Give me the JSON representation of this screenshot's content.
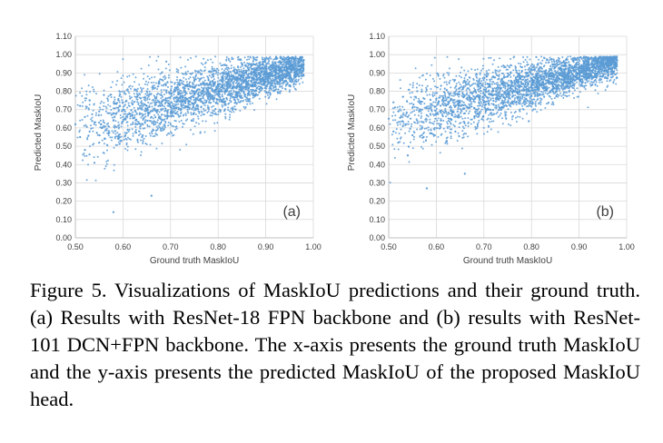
{
  "chart_data": [
    {
      "type": "scatter",
      "panel_label": "(a)",
      "xlabel": "Ground truth MaskIoU",
      "ylabel": "Predicted MaskIoU",
      "xlim": [
        0.5,
        1.0
      ],
      "ylim": [
        0.0,
        1.1
      ],
      "xticks": [
        "0.50",
        "0.60",
        "0.70",
        "0.80",
        "0.90",
        "1.00"
      ],
      "yticks": [
        "0.00",
        "0.10",
        "0.20",
        "0.30",
        "0.40",
        "0.50",
        "0.60",
        "0.70",
        "0.80",
        "0.90",
        "1.00",
        "1.10"
      ],
      "grid": true,
      "point_color": "#5B9BD5",
      "points": [
        [
          0.5,
          0.62
        ],
        [
          0.51,
          0.55
        ],
        [
          0.51,
          0.72
        ],
        [
          0.52,
          0.48
        ],
        [
          0.52,
          0.66
        ],
        [
          0.53,
          0.58
        ],
        [
          0.53,
          0.75
        ],
        [
          0.54,
          0.41
        ],
        [
          0.54,
          0.63
        ],
        [
          0.55,
          0.69
        ],
        [
          0.55,
          0.52
        ],
        [
          0.56,
          0.61
        ],
        [
          0.56,
          0.78
        ],
        [
          0.57,
          0.57
        ],
        [
          0.57,
          0.68
        ],
        [
          0.58,
          0.14
        ],
        [
          0.58,
          0.64
        ],
        [
          0.59,
          0.71
        ],
        [
          0.59,
          0.54
        ],
        [
          0.6,
          0.66
        ],
        [
          0.6,
          0.74
        ],
        [
          0.61,
          0.59
        ],
        [
          0.61,
          0.81
        ],
        [
          0.62,
          0.67
        ],
        [
          0.62,
          0.73
        ],
        [
          0.63,
          0.62
        ],
        [
          0.63,
          0.77
        ],
        [
          0.64,
          0.7
        ],
        [
          0.64,
          0.55
        ],
        [
          0.65,
          0.72
        ],
        [
          0.65,
          0.8
        ],
        [
          0.66,
          0.66
        ],
        [
          0.66,
          0.23
        ],
        [
          0.67,
          0.74
        ],
        [
          0.67,
          0.69
        ],
        [
          0.68,
          0.78
        ],
        [
          0.68,
          0.63
        ],
        [
          0.69,
          0.75
        ],
        [
          0.69,
          0.84
        ],
        [
          0.7,
          0.72
        ],
        [
          0.7,
          0.79
        ],
        [
          0.71,
          0.68
        ],
        [
          0.71,
          0.82
        ],
        [
          0.72,
          0.76
        ],
        [
          0.72,
          0.86
        ],
        [
          0.73,
          0.74
        ],
        [
          0.73,
          0.8
        ],
        [
          0.74,
          0.83
        ],
        [
          0.74,
          0.71
        ],
        [
          0.75,
          0.79
        ],
        [
          0.75,
          0.86
        ],
        [
          0.76,
          0.81
        ],
        [
          0.76,
          0.75
        ],
        [
          0.77,
          0.84
        ],
        [
          0.77,
          0.78
        ],
        [
          0.78,
          0.86
        ],
        [
          0.78,
          0.82
        ],
        [
          0.79,
          0.88
        ],
        [
          0.79,
          0.76
        ],
        [
          0.8,
          0.84
        ],
        [
          0.8,
          0.8
        ],
        [
          0.81,
          0.87
        ],
        [
          0.81,
          0.83
        ],
        [
          0.82,
          0.85
        ],
        [
          0.82,
          0.89
        ],
        [
          0.83,
          0.82
        ],
        [
          0.83,
          0.88
        ],
        [
          0.84,
          0.86
        ],
        [
          0.84,
          0.9
        ],
        [
          0.85,
          0.84
        ],
        [
          0.85,
          0.89
        ],
        [
          0.86,
          0.87
        ],
        [
          0.86,
          0.91
        ],
        [
          0.87,
          0.85
        ],
        [
          0.87,
          0.9
        ],
        [
          0.88,
          0.88
        ],
        [
          0.88,
          0.92
        ],
        [
          0.89,
          0.86
        ],
        [
          0.89,
          0.91
        ],
        [
          0.9,
          0.89
        ],
        [
          0.9,
          0.93
        ],
        [
          0.91,
          0.9
        ],
        [
          0.91,
          0.94
        ],
        [
          0.92,
          0.91
        ],
        [
          0.92,
          0.95
        ],
        [
          0.93,
          0.92
        ],
        [
          0.93,
          0.96
        ],
        [
          0.94,
          0.93
        ],
        [
          0.94,
          0.97
        ],
        [
          0.95,
          0.94
        ],
        [
          0.95,
          0.98
        ],
        [
          0.96,
          0.95
        ],
        [
          0.96,
          0.97
        ],
        [
          0.97,
          0.96
        ],
        [
          0.97,
          0.94
        ],
        [
          0.98,
          0.97
        ]
      ]
    },
    {
      "type": "scatter",
      "panel_label": "(b)",
      "xlabel": "Ground truth MaskIoU",
      "ylabel": "Predicted MaskIoU",
      "xlim": [
        0.5,
        1.0
      ],
      "ylim": [
        0.0,
        1.1
      ],
      "xticks": [
        "0.50",
        "0.60",
        "0.70",
        "0.80",
        "0.90",
        "1.00"
      ],
      "yticks": [
        "0.00",
        "0.10",
        "0.20",
        "0.30",
        "0.40",
        "0.50",
        "0.60",
        "0.70",
        "0.80",
        "0.90",
        "1.00",
        "1.10"
      ],
      "grid": true,
      "point_color": "#5B9BD5",
      "points": [
        [
          0.5,
          0.65
        ],
        [
          0.51,
          0.58
        ],
        [
          0.51,
          0.74
        ],
        [
          0.52,
          0.52
        ],
        [
          0.52,
          0.69
        ],
        [
          0.53,
          0.61
        ],
        [
          0.53,
          0.77
        ],
        [
          0.54,
          0.45
        ],
        [
          0.54,
          0.66
        ],
        [
          0.55,
          0.71
        ],
        [
          0.55,
          0.56
        ],
        [
          0.56,
          0.64
        ],
        [
          0.56,
          0.8
        ],
        [
          0.57,
          0.6
        ],
        [
          0.57,
          0.7
        ],
        [
          0.58,
          0.27
        ],
        [
          0.58,
          0.67
        ],
        [
          0.59,
          0.73
        ],
        [
          0.59,
          0.57
        ],
        [
          0.6,
          0.68
        ],
        [
          0.6,
          0.76
        ],
        [
          0.61,
          0.62
        ],
        [
          0.61,
          0.83
        ],
        [
          0.62,
          0.69
        ],
        [
          0.62,
          0.75
        ],
        [
          0.63,
          0.65
        ],
        [
          0.63,
          0.79
        ],
        [
          0.64,
          0.72
        ],
        [
          0.64,
          0.58
        ],
        [
          0.65,
          0.74
        ],
        [
          0.65,
          0.82
        ],
        [
          0.66,
          0.68
        ],
        [
          0.66,
          0.35
        ],
        [
          0.67,
          0.76
        ],
        [
          0.67,
          0.71
        ],
        [
          0.68,
          0.8
        ],
        [
          0.68,
          0.66
        ],
        [
          0.69,
          0.77
        ],
        [
          0.69,
          0.86
        ],
        [
          0.7,
          0.74
        ],
        [
          0.7,
          0.81
        ],
        [
          0.71,
          0.7
        ],
        [
          0.71,
          0.84
        ],
        [
          0.72,
          0.78
        ],
        [
          0.72,
          0.88
        ],
        [
          0.73,
          0.76
        ],
        [
          0.73,
          0.82
        ],
        [
          0.74,
          0.85
        ],
        [
          0.74,
          0.73
        ],
        [
          0.75,
          0.81
        ],
        [
          0.75,
          0.88
        ],
        [
          0.76,
          0.83
        ],
        [
          0.76,
          0.77
        ],
        [
          0.77,
          0.86
        ],
        [
          0.77,
          0.8
        ],
        [
          0.78,
          0.88
        ],
        [
          0.78,
          0.84
        ],
        [
          0.79,
          0.9
        ],
        [
          0.79,
          0.78
        ],
        [
          0.8,
          0.86
        ],
        [
          0.8,
          0.82
        ],
        [
          0.81,
          0.89
        ],
        [
          0.81,
          0.85
        ],
        [
          0.82,
          0.87
        ],
        [
          0.82,
          0.91
        ],
        [
          0.83,
          0.84
        ],
        [
          0.83,
          0.9
        ],
        [
          0.84,
          0.88
        ],
        [
          0.84,
          0.92
        ],
        [
          0.85,
          0.86
        ],
        [
          0.85,
          0.91
        ],
        [
          0.86,
          0.89
        ],
        [
          0.86,
          0.93
        ],
        [
          0.87,
          0.87
        ],
        [
          0.87,
          0.92
        ],
        [
          0.88,
          0.9
        ],
        [
          0.88,
          0.94
        ],
        [
          0.89,
          0.88
        ],
        [
          0.89,
          0.93
        ],
        [
          0.9,
          0.91
        ],
        [
          0.9,
          0.95
        ],
        [
          0.91,
          0.92
        ],
        [
          0.91,
          0.96
        ],
        [
          0.92,
          0.93
        ],
        [
          0.92,
          0.96
        ],
        [
          0.93,
          0.94
        ],
        [
          0.93,
          0.97
        ],
        [
          0.94,
          0.95
        ],
        [
          0.94,
          0.98
        ],
        [
          0.95,
          0.96
        ],
        [
          0.95,
          0.98
        ],
        [
          0.96,
          0.97
        ],
        [
          0.96,
          0.95
        ],
        [
          0.97,
          0.97
        ],
        [
          0.97,
          0.96
        ],
        [
          0.98,
          0.97
        ]
      ]
    }
  ],
  "caption": "Figure 5. Visualizations of MaskIoU predictions and their ground truth. (a) Results with ResNet-18 FPN backbone and (b) results with ResNet-101 DCN+FPN backbone. The x-axis presents the ground truth MaskIoU and the y-axis presents the predicted MaskIoU of the proposed MaskIoU head."
}
